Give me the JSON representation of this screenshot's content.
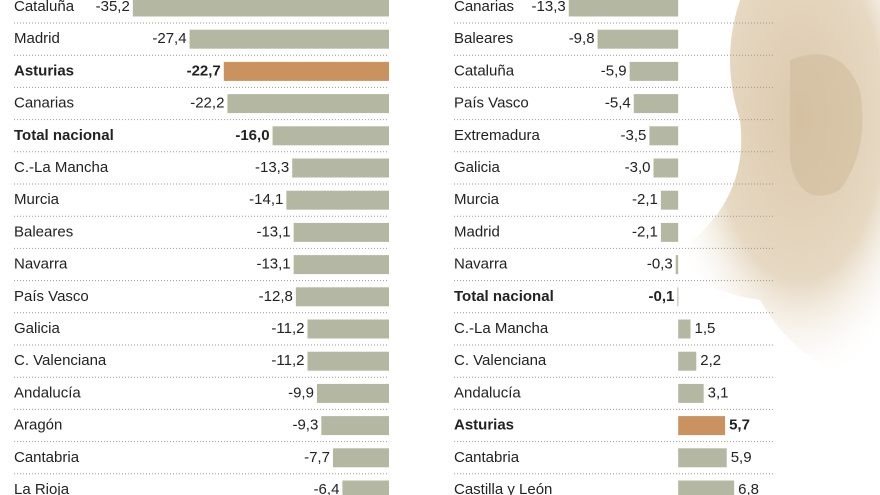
{
  "chart_data": [
    {
      "type": "bar",
      "orientation": "horizontal",
      "categories": [
        "Cataluña",
        "Madrid",
        "Asturias",
        "Canarias",
        "Total nacional",
        "C.-La Mancha",
        "Murcia",
        "Baleares",
        "Navarra",
        "País Vasco",
        "Galicia",
        "C. Valenciana",
        "Andalucía",
        "Aragón",
        "Cantabria",
        "La Rioja"
      ],
      "values": [
        -35.2,
        -27.4,
        -22.7,
        -22.2,
        -16.0,
        -13.3,
        -14.1,
        -13.1,
        -13.1,
        -12.8,
        -11.2,
        -11.2,
        -9.9,
        -9.3,
        -7.7,
        -6.4
      ],
      "value_labels": [
        "-35,2",
        "-27,4",
        "-22,7",
        "-22,2",
        "-16,0",
        "-13,3",
        "-14,1",
        "-13,1",
        "-13,1",
        "-12,8",
        "-11,2",
        "-11,2",
        "-9,9",
        "-9,3",
        "-7,7",
        "-6,4"
      ],
      "colors": [
        "#b4b8a2",
        "#b4b8a2",
        "#c9925f",
        "#b4b8a2",
        "#b4b8a2",
        "#b4b8a2",
        "#b4b8a2",
        "#b4b8a2",
        "#b4b8a2",
        "#b4b8a2",
        "#b4b8a2",
        "#b4b8a2",
        "#b4b8a2",
        "#b4b8a2",
        "#b4b8a2",
        "#b4b8a2"
      ],
      "font_weights": [
        "normal",
        "normal",
        "bold",
        "normal",
        "bold",
        "normal",
        "normal",
        "normal",
        "normal",
        "normal",
        "normal",
        "normal",
        "normal",
        "normal",
        "normal",
        "normal"
      ],
      "xlim": [
        -36,
        0
      ]
    },
    {
      "type": "bar",
      "orientation": "horizontal",
      "categories": [
        "Canarias",
        "Baleares",
        "Cataluña",
        "País Vasco",
        "Extremadura",
        "Galicia",
        "Murcia",
        "Madrid",
        "Navarra",
        "Total nacional",
        "C.-La Mancha",
        "C. Valenciana",
        "Andalucía",
        "Asturias",
        "Cantabria",
        "Castilla y León"
      ],
      "values": [
        -13.3,
        -9.8,
        -5.9,
        -5.4,
        -3.5,
        -3.0,
        -2.1,
        -2.1,
        -0.3,
        -0.1,
        1.5,
        2.2,
        3.1,
        5.7,
        5.9,
        6.8
      ],
      "value_labels": [
        "-13,3",
        "-9,8",
        "-5,9",
        "-5,4",
        "-3,5",
        "-3,0",
        "-2,1",
        "-2,1",
        "-0,3",
        "-0,1",
        "1,5",
        "2,2",
        "3,1",
        "5,7",
        "5,9",
        "6,8"
      ],
      "colors": [
        "#b4b8a2",
        "#b4b8a2",
        "#b4b8a2",
        "#b4b8a2",
        "#b4b8a2",
        "#b4b8a2",
        "#b4b8a2",
        "#b4b8a2",
        "#b4b8a2",
        "#b4b8a2",
        "#b4b8a2",
        "#b4b8a2",
        "#b4b8a2",
        "#c9925f",
        "#b4b8a2",
        "#b4b8a2"
      ],
      "font_weights": [
        "normal",
        "normal",
        "normal",
        "normal",
        "normal",
        "normal",
        "normal",
        "normal",
        "normal",
        "bold",
        "normal",
        "normal",
        "normal",
        "bold",
        "normal",
        "normal"
      ],
      "xlim": [
        -14,
        8
      ]
    }
  ]
}
